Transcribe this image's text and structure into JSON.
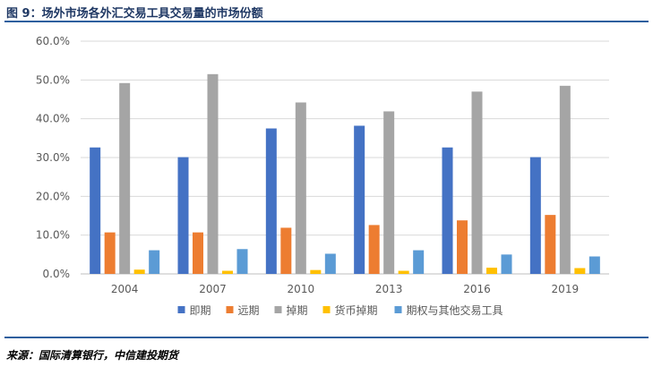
{
  "figure": {
    "title": "图 9：场外市场各外汇交易工具交易量的市场份额",
    "source": "来源：国际清算银行，中信建投期货"
  },
  "chart_data": {
    "type": "bar",
    "title": "",
    "xlabel": "",
    "ylabel": "",
    "categories": [
      "2004",
      "2007",
      "2010",
      "2013",
      "2016",
      "2019"
    ],
    "ylim": [
      0,
      60
    ],
    "ytick_step": 10,
    "ytick_labels": [
      "0.0%",
      "10.0%",
      "20.0%",
      "30.0%",
      "40.0%",
      "50.0%",
      "60.0%"
    ],
    "grid": true,
    "legend_position": "bottom",
    "series": [
      {
        "name": "即期",
        "color": "#4472c4",
        "values": [
          32.6,
          30.1,
          37.5,
          38.2,
          32.6,
          30.1
        ]
      },
      {
        "name": "远期",
        "color": "#ed7d31",
        "values": [
          10.7,
          10.7,
          11.9,
          12.6,
          13.8,
          15.2
        ]
      },
      {
        "name": "掉期",
        "color": "#a5a5a5",
        "values": [
          49.2,
          51.5,
          44.2,
          41.9,
          47.0,
          48.5
        ]
      },
      {
        "name": "货币掉期",
        "color": "#ffc000",
        "values": [
          1.1,
          0.8,
          1.0,
          0.8,
          1.6,
          1.5
        ]
      },
      {
        "name": "期权与其他交易工具",
        "color": "#5b9bd5",
        "values": [
          6.1,
          6.4,
          5.2,
          6.1,
          5.0,
          4.5
        ]
      }
    ]
  }
}
